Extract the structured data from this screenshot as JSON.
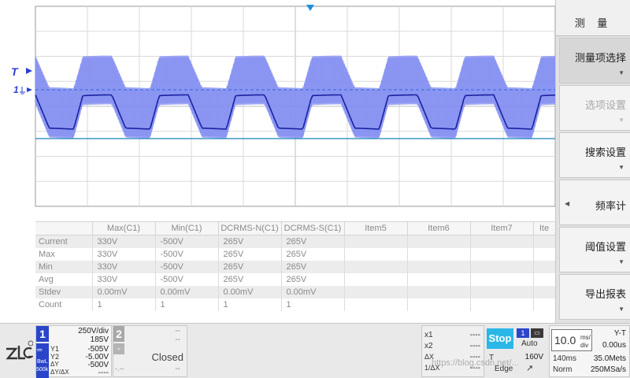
{
  "plot": {
    "trigger_marker": "T",
    "ch1_marker": "1",
    "colors": {
      "waveform": "#5f6ff0",
      "envelope": "#8e98f2",
      "mean": "#1a22a0",
      "trigger_level": "#2d6bd6",
      "cursor": "#1a84b8",
      "grid": "#c8c8c8"
    }
  },
  "table": {
    "headers": [
      "",
      "Max(C1)",
      "Min(C1)",
      "DCRMS-N(C1)",
      "DCRMS-S(C1)",
      "Item5",
      "Item6",
      "Item7",
      "Ite"
    ],
    "rows": [
      {
        "label": "Current",
        "values": [
          "330V",
          "-500V",
          "265V",
          "265V"
        ]
      },
      {
        "label": "Max",
        "values": [
          "330V",
          "-500V",
          "265V",
          "265V"
        ]
      },
      {
        "label": "Min",
        "values": [
          "330V",
          "-500V",
          "265V",
          "265V"
        ]
      },
      {
        "label": "Avg",
        "values": [
          "330V",
          "-500V",
          "265V",
          "265V"
        ]
      },
      {
        "label": "Stdev",
        "values": [
          "0.00mV",
          "0.00mV",
          "0.00mV",
          "0.00mV"
        ]
      },
      {
        "label": "Count",
        "values": [
          "1",
          "1",
          "1",
          "1"
        ]
      }
    ]
  },
  "menu": {
    "title": "测 量",
    "items": [
      {
        "label": "测量项选择",
        "state": "active"
      },
      {
        "label": "选项设置",
        "state": "disabled"
      },
      {
        "label": "搜索设置",
        "state": "normal"
      },
      {
        "label": "频率计",
        "state": "normal"
      },
      {
        "label": "阈值设置",
        "state": "normal"
      },
      {
        "label": "导出报表",
        "state": "normal"
      }
    ]
  },
  "status": {
    "ch1": {
      "number": "1",
      "scale": "250V/div",
      "offset": "185V",
      "bw": "BwL",
      "imp": "500k",
      "y1_label": "Y1",
      "y1_value": "-505V",
      "y2_label": "Y2",
      "y2_value": "-5.00V",
      "dy_label": "ΔY",
      "dy_value": "-500V",
      "dydx_label": "ΔY/ΔX",
      "dydx_value": "----"
    },
    "ch2": {
      "number": "2",
      "minus": "-",
      "dash1": "--",
      "dash2": "--",
      "state": "Closed",
      "dash3": "--",
      "dash4": "-.--"
    },
    "cursor": {
      "x1_label": "x1",
      "x1_value": "----",
      "x2_label": "x2",
      "x2_value": "----",
      "dx_label": "ΔX",
      "dx_value": "----",
      "idx_label": "1/ΔX",
      "idx_value": "----"
    },
    "run": {
      "stop_label": "Stop",
      "trig_ch": "1",
      "mode": "Auto",
      "t_label": "T",
      "level": "160V",
      "type": "Edge"
    },
    "timebase": {
      "value": "10.0",
      "unit_top": "ms/",
      "unit_bottom": "div",
      "mode": "Y-T",
      "delay": "0.00us",
      "length": "140ms",
      "memory": "35.0Mets",
      "acq": "Norm",
      "rate": "250MSa/s"
    },
    "watermark": "https://blog.csdn.net/..."
  }
}
